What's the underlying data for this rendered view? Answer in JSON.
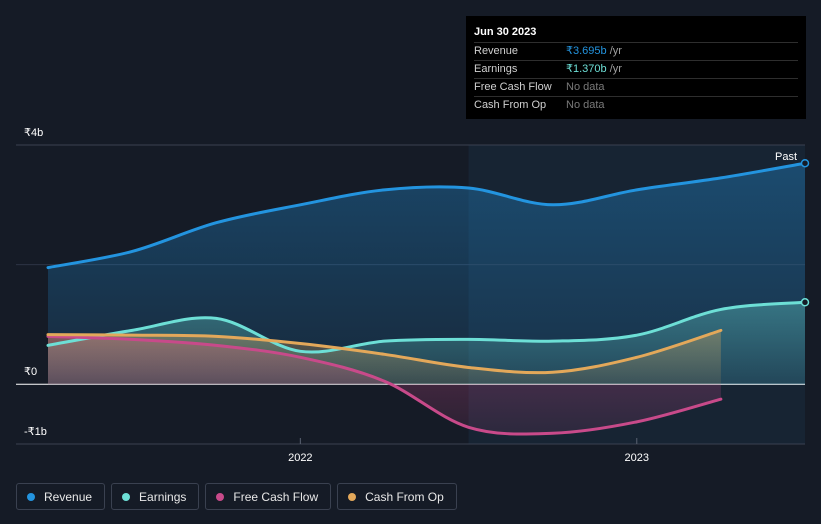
{
  "tooltip": {
    "date": "Jun 30 2023",
    "rows": [
      {
        "label": "Revenue",
        "value": "₹3.695b",
        "unit": " /yr",
        "kind": "revenue"
      },
      {
        "label": "Earnings",
        "value": "₹1.370b",
        "unit": " /yr",
        "kind": "earnings"
      },
      {
        "label": "Free Cash Flow",
        "value": "No data",
        "unit": "",
        "kind": "none"
      },
      {
        "label": "Cash From Op",
        "value": "No data",
        "unit": "",
        "kind": "none"
      }
    ]
  },
  "past_label": "Past",
  "legend": [
    {
      "label": "Revenue",
      "color": "#2394df"
    },
    {
      "label": "Earnings",
      "color": "#6ddfd6"
    },
    {
      "label": "Free Cash Flow",
      "color": "#c84a8a"
    },
    {
      "label": "Cash From Op",
      "color": "#e3a85a"
    }
  ],
  "chart_data": {
    "type": "area",
    "title": "",
    "unit": "₹ billions",
    "y_ticks": [
      {
        "value": 4,
        "label": "₹4b"
      },
      {
        "value": 0,
        "label": "₹0"
      },
      {
        "value": -1,
        "label": "-₹1b"
      }
    ],
    "ylim": [
      -1,
      4
    ],
    "xlim": [
      2021.25,
      2023.5
    ],
    "x_ticks": [
      {
        "value": 2022.0,
        "label": "2022"
      },
      {
        "value": 2023.0,
        "label": "2023"
      }
    ],
    "past_region_start": 2022.5,
    "series": [
      {
        "name": "Revenue",
        "color": "#2394df",
        "fill": true,
        "x": [
          2021.25,
          2021.5,
          2021.75,
          2022.0,
          2022.25,
          2022.5,
          2022.75,
          2023.0,
          2023.25,
          2023.5
        ],
        "values": [
          1.95,
          2.22,
          2.7,
          3.0,
          3.25,
          3.28,
          3.0,
          3.25,
          3.45,
          3.695
        ]
      },
      {
        "name": "Earnings",
        "color": "#6ddfd6",
        "fill": true,
        "x": [
          2021.25,
          2021.5,
          2021.75,
          2022.0,
          2022.25,
          2022.5,
          2022.75,
          2023.0,
          2023.25,
          2023.5
        ],
        "values": [
          0.65,
          0.9,
          1.1,
          0.55,
          0.72,
          0.75,
          0.72,
          0.82,
          1.25,
          1.37
        ]
      },
      {
        "name": "Free Cash Flow",
        "color": "#c84a8a",
        "fill": true,
        "x": [
          2021.25,
          2021.5,
          2021.75,
          2022.0,
          2022.25,
          2022.5,
          2022.75,
          2023.0,
          2023.25
        ],
        "values": [
          0.8,
          0.75,
          0.65,
          0.45,
          0.05,
          -0.72,
          -0.82,
          -0.63,
          -0.25
        ]
      },
      {
        "name": "Cash From Op",
        "color": "#e3a85a",
        "fill": true,
        "x": [
          2021.25,
          2021.5,
          2021.75,
          2022.0,
          2022.25,
          2022.5,
          2022.75,
          2023.0,
          2023.25
        ],
        "values": [
          0.83,
          0.82,
          0.8,
          0.68,
          0.5,
          0.28,
          0.2,
          0.45,
          0.9
        ]
      }
    ]
  }
}
